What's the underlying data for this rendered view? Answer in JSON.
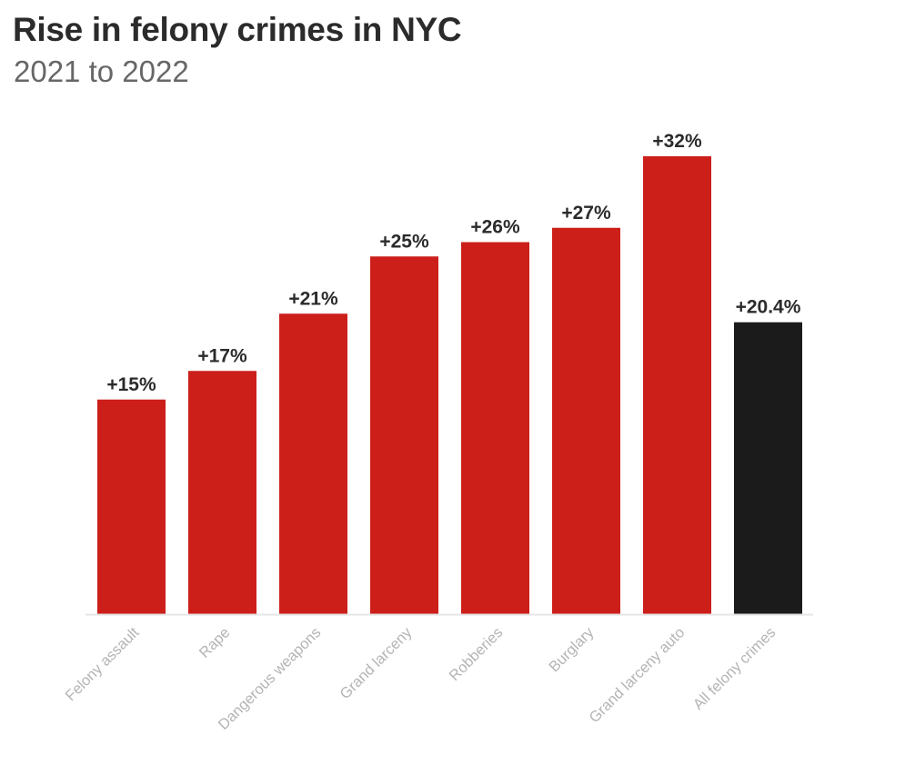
{
  "title": "Rise in felony crimes in NYC",
  "subtitle": "2021 to 2022",
  "chart_data": {
    "type": "bar",
    "title": "Rise in felony crimes in NYC",
    "subtitle": "2021 to 2022",
    "xlabel": "",
    "ylabel": "",
    "ylim": [
      0,
      32
    ],
    "grid": false,
    "categories": [
      "Felony assault",
      "Rape",
      "Dangerous weapons",
      "Grand larceny",
      "Robberies",
      "Burglary",
      "Grand larceny auto",
      "All felony crimes"
    ],
    "values": [
      15,
      17,
      21,
      25,
      26,
      27,
      32,
      20.4
    ],
    "data_labels": [
      "+15%",
      "+17%",
      "+21%",
      "+25%",
      "+26%",
      "+27%",
      "+32%",
      "+20.4%"
    ],
    "colors": [
      "#cc1f1a",
      "#cc1f1a",
      "#cc1f1a",
      "#cc1f1a",
      "#cc1f1a",
      "#cc1f1a",
      "#cc1f1a",
      "#1b1b1b"
    ],
    "label_color": "#2b2b2b",
    "category_color": "#b4b4b4",
    "axis_color": "#e6e6e6"
  }
}
